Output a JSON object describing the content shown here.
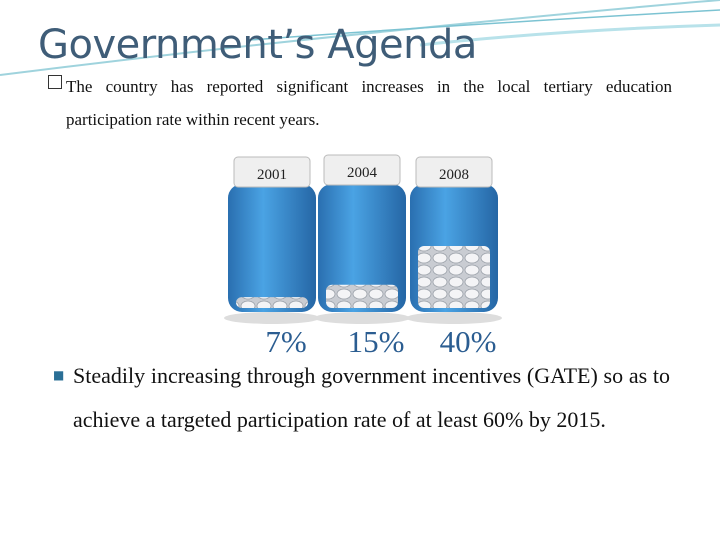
{
  "title": "Government’s Agenda",
  "bullets": [
    "The country has reported significant increases in the local tertiary education participation rate within recent years.",
    "Steadily increasing through government incentives (GATE) so as to achieve a targeted participation rate of at least 60% by 2015."
  ],
  "chart_data": {
    "type": "bar",
    "categories": [
      "2001",
      "2004",
      "2008"
    ],
    "values": [
      7,
      15,
      40
    ],
    "value_labels": [
      "7%",
      "15%",
      "40%"
    ],
    "color": "#3a8fd2"
  }
}
